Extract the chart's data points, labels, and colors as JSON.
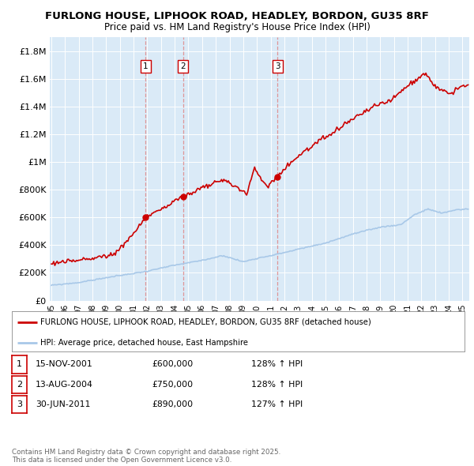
{
  "title1": "FURLONG HOUSE, LIPHOOK ROAD, HEADLEY, BORDON, GU35 8RF",
  "title2": "Price paid vs. HM Land Registry's House Price Index (HPI)",
  "ylabel_vals": [
    "£0",
    "£200K",
    "£400K",
    "£600K",
    "£800K",
    "£1M",
    "£1.2M",
    "£1.4M",
    "£1.6M",
    "£1.8M"
  ],
  "yticks": [
    0,
    200000,
    400000,
    600000,
    800000,
    1000000,
    1200000,
    1400000,
    1600000,
    1800000
  ],
  "ylim": [
    0,
    1900000
  ],
  "xlim_start": 1994.88,
  "xlim_end": 2025.5,
  "bg_color": "#daeaf7",
  "red_color": "#cc0000",
  "blue_color": "#a8c8e8",
  "sale_dates": [
    2001.877,
    2004.619,
    2011.496
  ],
  "sale_prices": [
    600000,
    750000,
    890000
  ],
  "sale_labels": [
    "1",
    "2",
    "3"
  ],
  "transaction_rows": [
    {
      "num": "1",
      "date": "15-NOV-2001",
      "price": "£600,000",
      "hpi": "128% ↑ HPI"
    },
    {
      "num": "2",
      "date": "13-AUG-2004",
      "price": "£750,000",
      "hpi": "128% ↑ HPI"
    },
    {
      "num": "3",
      "date": "30-JUN-2011",
      "price": "£890,000",
      "hpi": "127% ↑ HPI"
    }
  ],
  "legend_line1": "FURLONG HOUSE, LIPHOOK ROAD, HEADLEY, BORDON, GU35 8RF (detached house)",
  "legend_line2": "HPI: Average price, detached house, East Hampshire",
  "footer": "Contains HM Land Registry data © Crown copyright and database right 2025.\nThis data is licensed under the Open Government Licence v3.0.",
  "hpi_anchors_t": [
    1995.0,
    1997.0,
    1999.0,
    2001.877,
    2004.0,
    2006.0,
    2007.5,
    2009.0,
    2010.0,
    2011.5,
    2013.0,
    2015.0,
    2017.0,
    2019.0,
    2020.5,
    2021.5,
    2022.5,
    2023.5,
    2024.5,
    2025.3
  ],
  "hpi_anchors_p": [
    110000,
    130000,
    165000,
    210000,
    255000,
    290000,
    325000,
    280000,
    305000,
    335000,
    370000,
    415000,
    480000,
    530000,
    548000,
    620000,
    660000,
    630000,
    655000,
    660000
  ],
  "prop_anchors_t": [
    1995.0,
    1997.0,
    1999.5,
    2001.0,
    2001.877,
    2002.5,
    2003.5,
    2004.0,
    2004.619,
    2005.5,
    2006.5,
    2007.3,
    2008.0,
    2009.3,
    2009.8,
    2010.3,
    2010.8,
    2011.2,
    2011.496,
    2011.9,
    2012.5,
    2013.5,
    2014.5,
    2015.5,
    2016.5,
    2017.5,
    2018.5,
    2019.5,
    2020.2,
    2021.0,
    2021.8,
    2022.3,
    2022.8,
    2023.2,
    2023.7,
    2024.2,
    2024.7,
    2025.3
  ],
  "prop_anchors_p": [
    270000,
    290000,
    330000,
    480000,
    600000,
    640000,
    680000,
    720000,
    750000,
    790000,
    830000,
    870000,
    850000,
    770000,
    960000,
    870000,
    830000,
    870000,
    890000,
    940000,
    1000000,
    1080000,
    1150000,
    1200000,
    1280000,
    1340000,
    1400000,
    1430000,
    1480000,
    1550000,
    1610000,
    1640000,
    1570000,
    1530000,
    1520000,
    1490000,
    1540000,
    1540000
  ]
}
